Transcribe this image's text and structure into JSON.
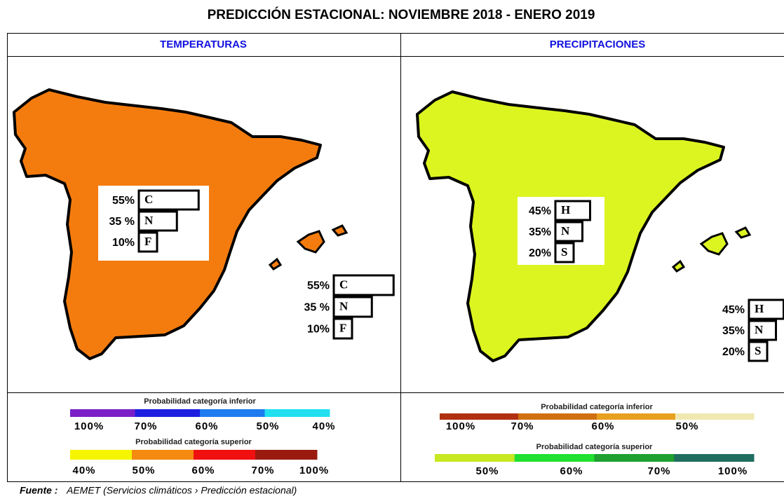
{
  "title": "PREDICCIÓN ESTACIONAL:  NOVIEMBRE 2018 - ENERO  2019",
  "panels": [
    {
      "header": "TEMPERATURAS",
      "map_color": "#f47c0e",
      "boxes": [
        {
          "rows": [
            {
              "value": 55,
              "label": "55%",
              "letter": "C"
            },
            {
              "value": 35,
              "label": "35 %",
              "letter": "N"
            },
            {
              "value": 10,
              "label": "10%",
              "letter": "F"
            }
          ]
        },
        {
          "rows": [
            {
              "value": 55,
              "label": "55%",
              "letter": "C"
            },
            {
              "value": 35,
              "label": "35 %",
              "letter": "N"
            },
            {
              "value": 10,
              "label": "10%",
              "letter": "F"
            }
          ]
        }
      ],
      "legends": [
        {
          "title": "Probabilidad categoría inferior",
          "colors": [
            "#7a1fc8",
            "#1e1ee0",
            "#1e7cf0",
            "#22e0f0"
          ],
          "labels": [
            "100%",
            "70%",
            "60%",
            "50%",
            "40%"
          ]
        },
        {
          "title": "Probabilidad categoría superior",
          "colors": [
            "#f5f500",
            "#f58a10",
            "#f01010",
            "#9a1a10"
          ],
          "labels": [
            "40%",
            "50%",
            "60%",
            "70%",
            "100%"
          ]
        }
      ]
    },
    {
      "header": "PRECIPITACIONES",
      "map_color": "#dcf520",
      "boxes": [
        {
          "rows": [
            {
              "value": 45,
              "label": "45%",
              "letter": "H"
            },
            {
              "value": 35,
              "label": "35%",
              "letter": "N"
            },
            {
              "value": 20,
              "label": "20%",
              "letter": "S"
            }
          ]
        },
        {
          "rows": [
            {
              "value": 45,
              "label": "45%",
              "letter": "H"
            },
            {
              "value": 35,
              "label": "35%",
              "letter": "N"
            },
            {
              "value": 20,
              "label": "20%",
              "letter": "S"
            }
          ]
        }
      ],
      "legends": [
        {
          "title": "Probabilidad categoría inferior",
          "colors": [
            "#b03010",
            "#d07010",
            "#e8a020",
            "#f0e8b0"
          ],
          "labels": [
            "100%",
            "70%",
            "60%",
            "50%"
          ]
        },
        {
          "title": "Probabilidad categoría superior",
          "colors": [
            "#c8e820",
            "#20e030",
            "#20a030",
            "#206e60"
          ],
          "labels": [
            "50%",
            "60%",
            "70%",
            "100%"
          ]
        }
      ]
    }
  ],
  "source": {
    "label": "Fuente :",
    "text": "AEMET (Servicios climáticos › Predicción estacional)"
  }
}
